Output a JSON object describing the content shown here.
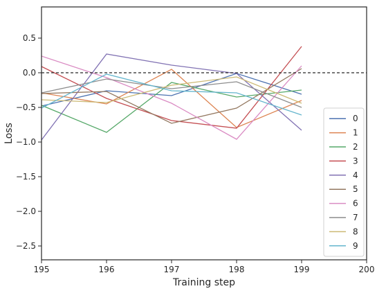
{
  "chart_data": {
    "type": "line",
    "xlabel": "Training step",
    "ylabel": "Loss",
    "xlim": [
      195,
      200
    ],
    "ylim": [
      -2.7,
      0.95
    ],
    "x_ticks": [
      "195",
      "196",
      "197",
      "198",
      "199",
      "200"
    ],
    "y_ticks": [
      "0.5",
      "0.0",
      "−0.5",
      "−1.0",
      "−1.5",
      "−2.0",
      "−2.5"
    ],
    "y_tick_values": [
      0.5,
      0.0,
      -0.5,
      -1.0,
      -1.5,
      -2.0,
      -2.5
    ],
    "x": [
      195,
      196,
      197,
      198,
      199
    ],
    "reference_line": {
      "y": 0.0,
      "style": "dashed",
      "color": "#000000"
    },
    "legend": {
      "position": "bottom-right"
    },
    "grid": false,
    "series": [
      {
        "name": "0",
        "color": "#4c72b0",
        "values": [
          -0.48,
          -0.26,
          -0.33,
          -0.01,
          -0.31
        ]
      },
      {
        "name": "1",
        "color": "#dd8452",
        "values": [
          -0.29,
          -0.45,
          0.05,
          -0.79,
          -0.4
        ]
      },
      {
        "name": "2",
        "color": "#55a868",
        "values": [
          -0.47,
          -0.86,
          -0.14,
          -0.35,
          -0.25
        ]
      },
      {
        "name": "3",
        "color": "#c44e52",
        "values": [
          0.09,
          -0.37,
          -0.69,
          -0.8,
          0.38
        ]
      },
      {
        "name": "4",
        "color": "#8172b3",
        "values": [
          -0.97,
          0.27,
          0.11,
          -0.01,
          -0.83
        ]
      },
      {
        "name": "5",
        "color": "#937860",
        "values": [
          -0.3,
          -0.27,
          -0.73,
          -0.51,
          0.06
        ]
      },
      {
        "name": "6",
        "color": "#da8bc3",
        "values": [
          0.24,
          -0.07,
          -0.44,
          -0.96,
          0.1
        ]
      },
      {
        "name": "7",
        "color": "#8c8c8c",
        "values": [
          -0.29,
          -0.09,
          -0.23,
          -0.13,
          -0.5
        ]
      },
      {
        "name": "8",
        "color": "#ccb974",
        "values": [
          -0.39,
          -0.43,
          -0.18,
          -0.06,
          -0.44
        ]
      },
      {
        "name": "9",
        "color": "#64b5cd",
        "values": [
          -0.51,
          -0.02,
          -0.26,
          -0.29,
          -0.61
        ]
      }
    ]
  }
}
